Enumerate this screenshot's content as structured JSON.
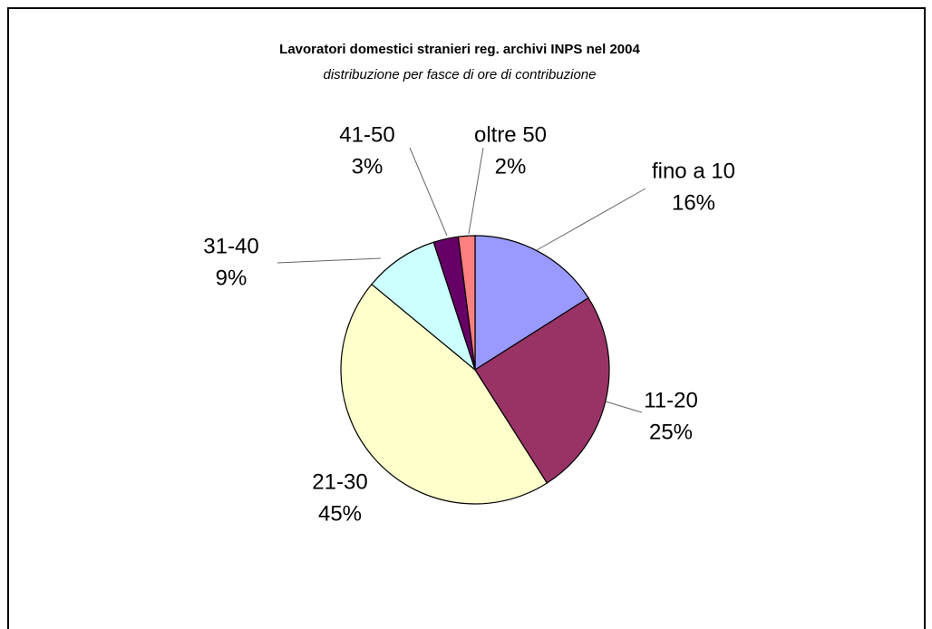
{
  "chart_data": {
    "type": "pie",
    "title": "Lavoratori domestici stranieri reg. archivi INPS nel 2004",
    "subtitle": "distribuzione per fasce di ore di contribuzione",
    "categories": [
      "fino a 10",
      "11-20",
      "21-30",
      "31-40",
      "41-50",
      "oltre 50"
    ],
    "values": [
      16,
      25,
      45,
      9,
      3,
      2
    ],
    "value_labels": [
      "16%",
      "25%",
      "45%",
      "9%",
      "3%",
      "2%"
    ],
    "colors": [
      "#9999ff",
      "#993366",
      "#ffffcc",
      "#ccffff",
      "#660066",
      "#ff8080"
    ]
  }
}
